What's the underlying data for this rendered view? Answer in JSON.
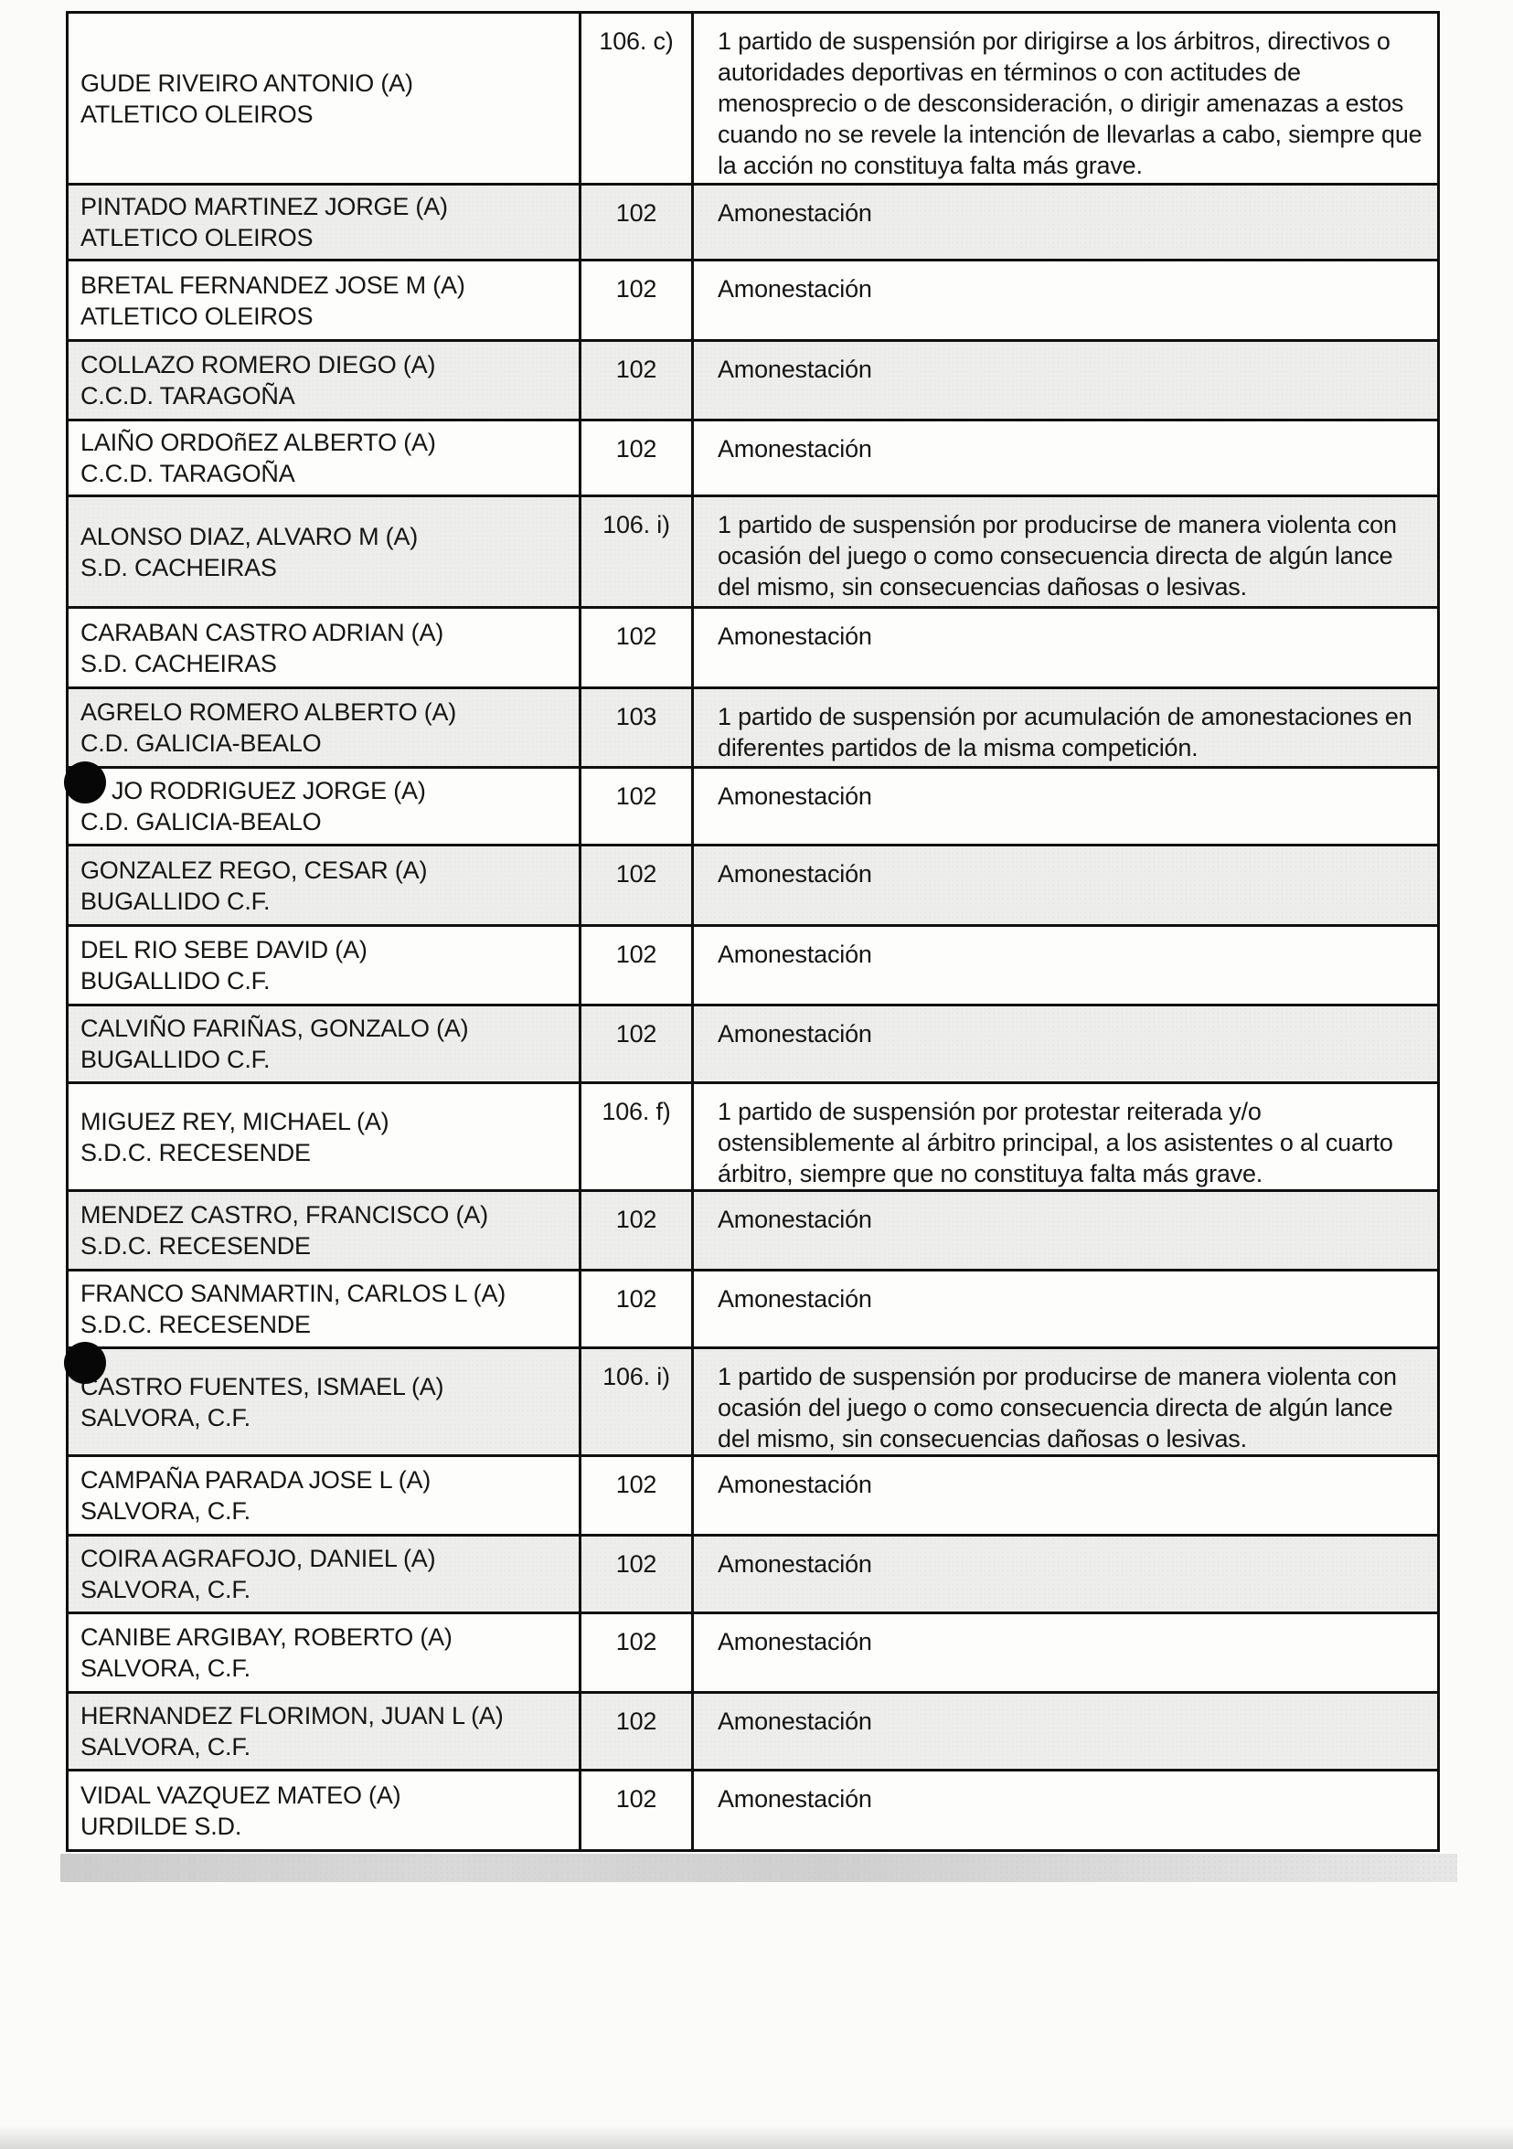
{
  "table": {
    "rows": [
      {
        "name": "GUDE RIVEIRO ANTONIO (A)",
        "club": "ATLETICO OLEIROS",
        "article": "106. c)",
        "sanction": "1 partido de suspensión por dirigirse a los árbitros, directivos o autoridades deportivas en términos o con actitudes de menosprecio o de desconsideración, o dirigir amenazas a estos cuando no se revele la intención de llevarlas a cabo, siempre que la acción no constituya falta más grave.",
        "redacted": false
      },
      {
        "name": "PINTADO MARTINEZ JORGE (A)",
        "club": "ATLETICO OLEIROS",
        "article": "102",
        "sanction": "Amonestación",
        "redacted": false
      },
      {
        "name": "BRETAL FERNANDEZ JOSE M (A)",
        "club": "ATLETICO OLEIROS",
        "article": "102",
        "sanction": "Amonestación",
        "redacted": false
      },
      {
        "name": "COLLAZO ROMERO DIEGO (A)",
        "club": "C.C.D. TARAGOÑA",
        "article": "102",
        "sanction": "Amonestación",
        "redacted": false
      },
      {
        "name": "LAIÑO ORDOñEZ ALBERTO (A)",
        "club": "C.C.D. TARAGOÑA",
        "article": "102",
        "sanction": "Amonestación",
        "redacted": false
      },
      {
        "name": "ALONSO DIAZ, ALVARO M (A)",
        "club": "S.D. CACHEIRAS",
        "article": "106. i)",
        "sanction": "1 partido de suspensión por producirse de manera violenta con ocasión del juego o como consecuencia directa de algún lance del mismo, sin consecuencias dañosas o lesivas.",
        "redacted": false
      },
      {
        "name": "CARABAN CASTRO ADRIAN (A)",
        "club": "S.D. CACHEIRAS",
        "article": "102",
        "sanction": "Amonestación",
        "redacted": false
      },
      {
        "name": "AGRELO ROMERO ALBERTO (A)",
        "club": "C.D. GALICIA-BEALO",
        "article": "103",
        "sanction": "1 partido de suspensión por acumulación de amonestaciones en diferentes partidos de la misma competición.",
        "redacted": false
      },
      {
        "name": "JO RODRIGUEZ JORGE (A)",
        "club": "C.D. GALICIA-BEALO",
        "article": "102",
        "sanction": "Amonestación",
        "redacted": true,
        "name_indented": true
      },
      {
        "name": "GONZALEZ REGO, CESAR (A)",
        "club": "BUGALLIDO C.F.",
        "article": "102",
        "sanction": "Amonestación",
        "redacted": false
      },
      {
        "name": "DEL RIO SEBE DAVID (A)",
        "club": "BUGALLIDO C.F.",
        "article": "102",
        "sanction": "Amonestación",
        "redacted": false
      },
      {
        "name": "CALVIÑO FARIÑAS, GONZALO (A)",
        "club": "BUGALLIDO C.F.",
        "article": "102",
        "sanction": "Amonestación",
        "redacted": false
      },
      {
        "name": "MIGUEZ REY, MICHAEL (A)",
        "club": "S.D.C. RECESENDE",
        "article": "106. f)",
        "sanction": "1 partido de suspensión por protestar reiterada y/o ostensiblemente al árbitro principal, a los asistentes o al cuarto árbitro, siempre que no constituya falta más grave.",
        "redacted": false
      },
      {
        "name": "MENDEZ CASTRO, FRANCISCO (A)",
        "club": "S.D.C. RECESENDE",
        "article": "102",
        "sanction": "Amonestación",
        "redacted": false
      },
      {
        "name": "FRANCO SANMARTIN, CARLOS L (A)",
        "club": "S.D.C. RECESENDE",
        "article": "102",
        "sanction": "Amonestación",
        "redacted": false
      },
      {
        "name": "CASTRO FUENTES, ISMAEL (A)",
        "club": "SALVORA, C.F.",
        "article": "106. i)",
        "sanction": "1 partido de suspensión por producirse de manera violenta con ocasión del juego o como consecuencia directa de algún lance del mismo, sin consecuencias dañosas o lesivas.",
        "redacted": true
      },
      {
        "name": "CAMPAÑA PARADA JOSE L (A)",
        "club": "SALVORA, C.F.",
        "article": "102",
        "sanction": "Amonestación",
        "redacted": false
      },
      {
        "name": "COIRA AGRAFOJO, DANIEL (A)",
        "club": "SALVORA, C.F.",
        "article": "102",
        "sanction": "Amonestación",
        "redacted": false
      },
      {
        "name": "CANIBE ARGIBAY, ROBERTO (A)",
        "club": "SALVORA, C.F.",
        "article": "102",
        "sanction": "Amonestación",
        "redacted": false
      },
      {
        "name": "HERNANDEZ FLORIMON, JUAN L (A)",
        "club": "SALVORA, C.F.",
        "article": "102",
        "sanction": "Amonestación",
        "redacted": false
      },
      {
        "name": "VIDAL VAZQUEZ MATEO (A)",
        "club": "URDILDE S.D.",
        "article": "102",
        "sanction": "Amonestación",
        "redacted": false
      }
    ]
  }
}
